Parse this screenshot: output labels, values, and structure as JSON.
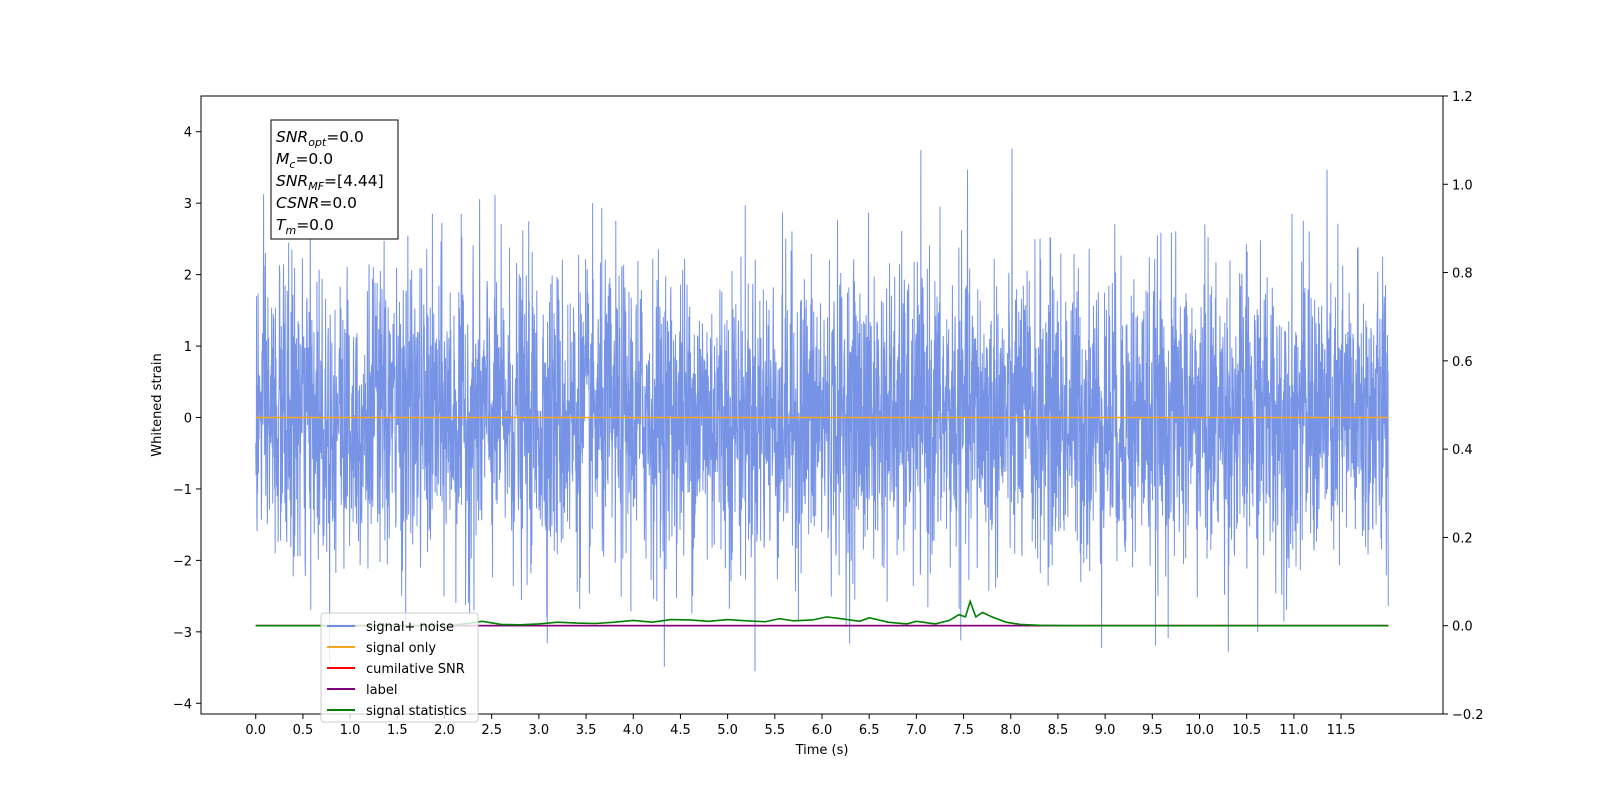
{
  "chart_data": {
    "type": "line",
    "title": "",
    "xlabel": "Time (s)",
    "ylabel": "Whitened strain",
    "y2label": "",
    "xlim": [
      -0.58,
      12.58
    ],
    "ylim": [
      -4.15,
      4.5
    ],
    "y2lim": [
      -0.2,
      1.2
    ],
    "x_ticks": [
      "0.0",
      "0.5",
      "1.0",
      "1.5",
      "2.0",
      "2.5",
      "3.0",
      "3.5",
      "4.0",
      "4.5",
      "5.0",
      "5.5",
      "6.0",
      "6.5",
      "7.0",
      "7.5",
      "8.0",
      "8.5",
      "9.0",
      "9.5",
      "10.0",
      "10.5",
      "11.0",
      "11.5"
    ],
    "y_ticks": [
      "4",
      "3",
      "2",
      "1",
      "0",
      "−1",
      "−2",
      "−3",
      "−4"
    ],
    "y2_ticks": [
      "1.2",
      "1.0",
      "0.8",
      "0.6",
      "0.4",
      "0.2",
      "0.0",
      "−0.2"
    ],
    "grid": false,
    "legend_position": "lower-left",
    "series": [
      {
        "name": "signal+ noise",
        "axis": "left",
        "color": "#6f8de4",
        "x_range": [
          0.0,
          12.0
        ],
        "approx_range": [
          -3.8,
          4.1
        ],
        "note_values": "dense Gaussian whitened noise, std ~1"
      },
      {
        "name": "signal only",
        "axis": "left",
        "color": "#f5a623",
        "x": [
          0.0,
          12.0
        ],
        "values": [
          0.0,
          0.0
        ]
      },
      {
        "name": "cumilative SNR",
        "axis": "right",
        "color": "#ff0000",
        "x": [
          0.0,
          12.0
        ],
        "values": [
          0.0,
          0.0
        ]
      },
      {
        "name": "label",
        "axis": "right",
        "color": "#800080",
        "x": [
          0.0,
          12.0
        ],
        "values": [
          0.0,
          0.0
        ]
      },
      {
        "name": "signal statistics",
        "axis": "right",
        "color": "#008000",
        "x": [
          0.0,
          0.5,
          1.0,
          1.5,
          2.0,
          2.25,
          2.4,
          2.6,
          2.8,
          3.0,
          3.2,
          3.4,
          3.6,
          3.8,
          4.0,
          4.2,
          4.4,
          4.6,
          4.8,
          5.0,
          5.2,
          5.4,
          5.55,
          5.7,
          5.9,
          6.05,
          6.2,
          6.4,
          6.5,
          6.7,
          6.9,
          7.0,
          7.2,
          7.35,
          7.45,
          7.52,
          7.57,
          7.63,
          7.7,
          7.8,
          7.95,
          8.1,
          8.3,
          8.6,
          9.0,
          10.0,
          11.0,
          12.0
        ],
        "values": [
          0.0,
          0.0,
          0.0,
          0.0,
          0.0,
          0.005,
          0.01,
          0.003,
          0.002,
          0.004,
          0.008,
          0.006,
          0.005,
          0.008,
          0.012,
          0.008,
          0.014,
          0.013,
          0.01,
          0.014,
          0.011,
          0.009,
          0.016,
          0.011,
          0.013,
          0.02,
          0.016,
          0.01,
          0.018,
          0.008,
          0.004,
          0.01,
          0.004,
          0.012,
          0.025,
          0.02,
          0.055,
          0.02,
          0.03,
          0.02,
          0.008,
          0.003,
          0.001,
          0.0,
          0.0,
          0.0,
          0.0,
          0.0
        ]
      }
    ],
    "stats_box": [
      {
        "base": "SNR",
        "sub": "opt",
        "value": "0.0"
      },
      {
        "base": "M",
        "sub": "c",
        "value": "0.0"
      },
      {
        "base": "SNR",
        "sub": "MF",
        "value": "[4.44]"
      },
      {
        "base": "CSNR",
        "sub": "",
        "value": "0.0"
      },
      {
        "base": "T",
        "sub": "m",
        "value": "0.0"
      }
    ]
  }
}
